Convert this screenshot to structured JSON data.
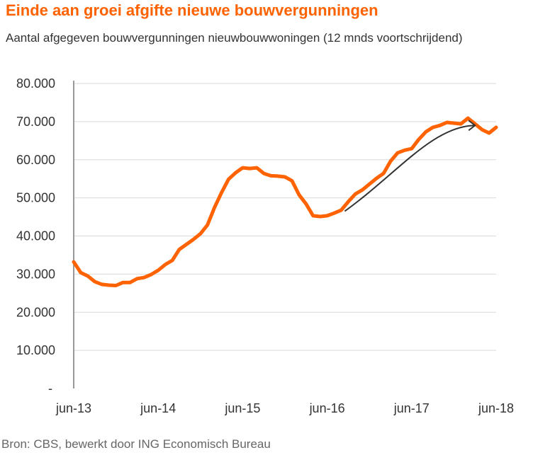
{
  "colors": {
    "title": "#FF6200",
    "line": "#FF6200",
    "arrow": "#333333",
    "grid": "#d9d9d9"
  },
  "chart_data": {
    "type": "line",
    "title": "Einde aan groei afgifte nieuwe bouwvergunningen",
    "subtitle": "Aantal afgegeven bouwvergunningen nieuwbouwwoningen (12 mnds voortschrijdend)",
    "source": "Bron: CBS, bewerkt door ING Economisch Bureau",
    "xlabel": "",
    "ylabel": "",
    "ylim": [
      0,
      80000
    ],
    "grid": true,
    "y_tick_labels": [
      "-",
      "10.000",
      "20.000",
      "30.000",
      "40.000",
      "50.000",
      "60.000",
      "70.000",
      "80.000"
    ],
    "x_tick_labels": [
      "jun-13",
      "jun-14",
      "jun-15",
      "jun-16",
      "jun-17",
      "jun-18"
    ],
    "x_range": [
      "2013-06",
      "2018-06"
    ],
    "annotation": "arrow indicating upward trend from mid-2016 to early 2018",
    "values": [
      33200,
      30400,
      29500,
      28000,
      27300,
      27100,
      27000,
      27800,
      27800,
      28800,
      29100,
      29900,
      31000,
      32500,
      33600,
      36500,
      37800,
      39100,
      40600,
      42900,
      47500,
      51400,
      54900,
      56600,
      57900,
      57700,
      57900,
      56400,
      55800,
      55700,
      55500,
      54500,
      50800,
      48400,
      45300,
      45100,
      45300,
      46000,
      46800,
      49000,
      51000,
      52100,
      53600,
      55100,
      56400,
      59600,
      61800,
      62500,
      62900,
      65300,
      67300,
      68500,
      69000,
      69800,
      69600,
      69400,
      70900,
      69400,
      67900,
      67000,
      68500
    ]
  }
}
